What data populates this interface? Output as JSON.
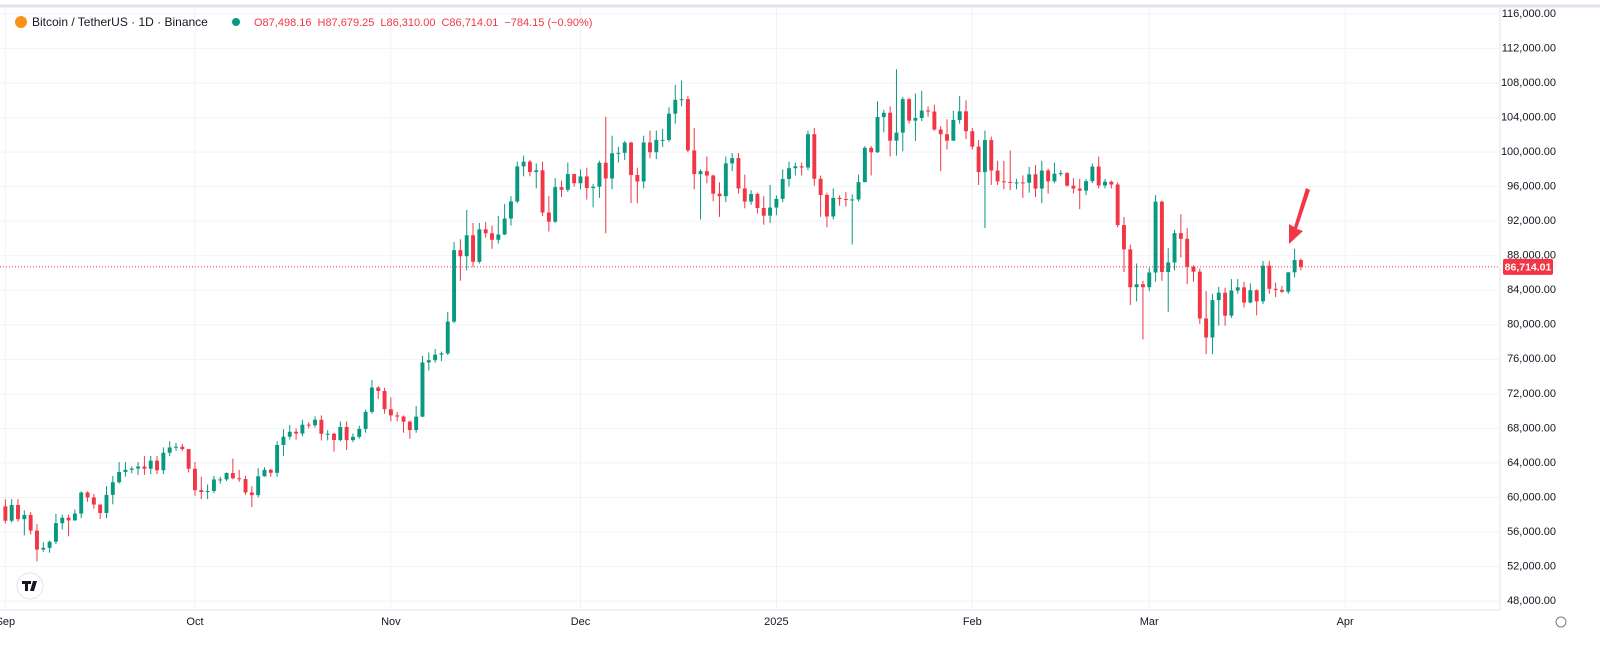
{
  "chart_data": {
    "type": "candlestick",
    "title": "Bitcoin / TetherUS · 1D · Binance",
    "header_values": [
      "O87,498.16",
      "H87,679.25",
      "L86,310.00",
      "C86,714.01",
      "−784.15 (−0.90%)"
    ],
    "last_price_label": "86,714.01",
    "up_color": "#089981",
    "down_color": "#f23645",
    "grid": true,
    "xlim": [
      -0.85,
      236.5
    ],
    "xticks": [
      {
        "value": 0,
        "label": "Sep"
      },
      {
        "value": 30,
        "label": "Oct"
      },
      {
        "value": 61,
        "label": "Nov"
      },
      {
        "value": 91,
        "label": "Dec"
      },
      {
        "value": 122,
        "label": "2025"
      },
      {
        "value": 153,
        "label": "Feb"
      },
      {
        "value": 181,
        "label": "Mar"
      },
      {
        "value": 212,
        "label": "Apr"
      }
    ],
    "ylim": [
      46960,
      116700
    ],
    "yticks": [
      {
        "value": 48000,
        "label": "48,000.00"
      },
      {
        "value": 52000,
        "label": "52,000.00"
      },
      {
        "value": 56000,
        "label": "56,000.00"
      },
      {
        "value": 60000,
        "label": "60,000.00"
      },
      {
        "value": 64000,
        "label": "64,000.00"
      },
      {
        "value": 68000,
        "label": "68,000.00"
      },
      {
        "value": 72000,
        "label": "72,000.00"
      },
      {
        "value": 76000,
        "label": "76,000.00"
      },
      {
        "value": 80000,
        "label": "80,000.00"
      },
      {
        "value": 84000,
        "label": "84,000.00"
      },
      {
        "value": 88000,
        "label": "88,000.00"
      },
      {
        "value": 92000,
        "label": "92,000.00"
      },
      {
        "value": 96000,
        "label": "96,000.00"
      },
      {
        "value": 100000,
        "label": "100,000.00"
      },
      {
        "value": 104000,
        "label": "104,000.00"
      },
      {
        "value": 108000,
        "label": "108,000.00"
      },
      {
        "value": 112000,
        "label": "112,000.00"
      },
      {
        "value": 116000,
        "label": "116,000.00"
      }
    ],
    "x": [
      0,
      1,
      2,
      3,
      4,
      5,
      6,
      7,
      8,
      9,
      10,
      11,
      12,
      13,
      14,
      15,
      16,
      17,
      18,
      19,
      20,
      21,
      22,
      23,
      24,
      25,
      26,
      27,
      28,
      29,
      30,
      31,
      32,
      33,
      34,
      35,
      36,
      37,
      38,
      39,
      40,
      41,
      42,
      43,
      44,
      45,
      46,
      47,
      48,
      49,
      50,
      51,
      52,
      53,
      54,
      55,
      56,
      57,
      58,
      59,
      60,
      61,
      62,
      63,
      64,
      65,
      66,
      67,
      68,
      69,
      70,
      71,
      72,
      73,
      74,
      75,
      76,
      77,
      78,
      79,
      80,
      81,
      82,
      83,
      84,
      85,
      86,
      87,
      88,
      89,
      90,
      91,
      92,
      93,
      94,
      95,
      96,
      97,
      98,
      99,
      100,
      101,
      102,
      103,
      104,
      105,
      106,
      107,
      108,
      109,
      110,
      111,
      112,
      113,
      114,
      115,
      116,
      117,
      118,
      119,
      120,
      121,
      122,
      123,
      124,
      125,
      126,
      127,
      128,
      129,
      130,
      131,
      132,
      133,
      134,
      135,
      136,
      137,
      138,
      139,
      140,
      141,
      142,
      143,
      144,
      145,
      146,
      147,
      148,
      149,
      150,
      151,
      152,
      153,
      154,
      155,
      156,
      157,
      158,
      159,
      160,
      161,
      162,
      163,
      164,
      165,
      166,
      167,
      168,
      169,
      170,
      171,
      172,
      173,
      174,
      175,
      176,
      177,
      178,
      179,
      180,
      181,
      182,
      183,
      184,
      185,
      186,
      187,
      188,
      189,
      190,
      191,
      192,
      193,
      194,
      195,
      196,
      197,
      198,
      199,
      200,
      201,
      202,
      203,
      204,
      205
    ],
    "open": [
      58970,
      57300,
      59130,
      57480,
      57970,
      56160,
      53960,
      54160,
      54870,
      57020,
      57650,
      57340,
      58130,
      60570,
      60000,
      59180,
      58200,
      60300,
      61760,
      62950,
      63200,
      63350,
      63580,
      63330,
      64260,
      63150,
      65180,
      65790,
      65880,
      65600,
      63330,
      60840,
      60630,
      60750,
      62080,
      62090,
      62820,
      62220,
      62130,
      60580,
      60270,
      62450,
      63200,
      62850,
      66080,
      67040,
      67610,
      67400,
      68430,
      68360,
      69000,
      67370,
      67380,
      66650,
      68160,
      66640,
      67020,
      67940,
      69910,
      72730,
      72340,
      70220,
      69500,
      69370,
      68780,
      67810,
      69360,
      75640,
      75900,
      76540,
      76680,
      80370,
      88650,
      87950,
      90370,
      87300,
      91060,
      90600,
      89850,
      90460,
      92310,
      94290,
      98350,
      98900,
      97700,
      97900,
      93010,
      91950,
      95950,
      95640,
      97460,
      96400,
      97190,
      95840,
      96000,
      98770,
      96950,
      99870,
      99920,
      101110,
      97350,
      96600,
      101120,
      100000,
      101420,
      101420,
      104460,
      106060,
      106140,
      100200,
      97460,
      97800,
      97290,
      95190,
      94900,
      98700,
      99310,
      95800,
      94270,
      95160,
      93530,
      92640,
      93580,
      94590,
      96890,
      98140,
      98360,
      98220,
      102080,
      96920,
      95040,
      92550,
      94700,
      94570,
      94520,
      94520,
      96530,
      100500,
      99990,
      104080,
      104560,
      101330,
      102260,
      106140,
      103650,
      103960,
      104820,
      104710,
      102620,
      102080,
      101330,
      103730,
      104730,
      102430,
      100640,
      97690,
      101400,
      97870,
      96620,
      96550,
      96480,
      96500,
      96460,
      97430,
      95780,
      97870,
      96620,
      97510,
      97570,
      96120,
      95780,
      95540,
      96640,
      98330,
      96140,
      96580,
      96250,
      91550,
      88740,
      84350,
      84700,
      84350,
      86060,
      94270,
      86120,
      87220,
      90620,
      89960,
      86740,
      86150,
      80730,
      78530,
      82860,
      83720,
      81060,
      83970,
      84340,
      82580,
      84010,
      82720,
      86850,
      84170,
      84040,
      83830,
      86080,
      87498.16
    ],
    "high": [
      59800,
      59800,
      59800,
      58500,
      58300,
      56900,
      54800,
      55000,
      58100,
      58000,
      58000,
      58600,
      60700,
      60700,
      60400,
      59200,
      61300,
      62500,
      64100,
      64100,
      63600,
      64100,
      64800,
      64800,
      64800,
      65800,
      66500,
      66300,
      66200,
      65600,
      64100,
      62400,
      61500,
      62500,
      62400,
      62900,
      64500,
      63200,
      62500,
      61300,
      63400,
      63500,
      63300,
      66500,
      67900,
      68400,
      68000,
      69000,
      68700,
      69400,
      69500,
      67800,
      67500,
      68800,
      68800,
      67400,
      68300,
      70200,
      73600,
      72900,
      72700,
      71600,
      69900,
      69500,
      68900,
      70600,
      76400,
      76800,
      77200,
      76900,
      81500,
      89600,
      89900,
      93300,
      91800,
      91800,
      91900,
      91500,
      92600,
      94000,
      94900,
      98900,
      99600,
      99100,
      98700,
      98900,
      94900,
      97000,
      96700,
      98800,
      97500,
      98000,
      98200,
      96300,
      99000,
      104100,
      101900,
      100600,
      101300,
      101200,
      98200,
      101900,
      102500,
      102500,
      102700,
      105200,
      107800,
      108300,
      106500,
      102800,
      98000,
      99500,
      97400,
      96500,
      99500,
      99900,
      99900,
      97400,
      95600,
      95300,
      94900,
      96200,
      95000,
      98000,
      98900,
      98800,
      98800,
      102500,
      102800,
      97300,
      95300,
      95800,
      95000,
      95400,
      95100,
      97400,
      100700,
      100700,
      105900,
      104900,
      105300,
      109600,
      106400,
      106300,
      106800,
      107100,
      105300,
      105500,
      103000,
      103800,
      104800,
      106500,
      106000,
      102800,
      101400,
      102500,
      101800,
      99000,
      99000,
      100200,
      96900,
      97300,
      98300,
      98500,
      99000,
      98100,
      98800,
      97900,
      97700,
      97000,
      96900,
      96900,
      98700,
      99500,
      96900,
      96700,
      96500,
      92500,
      89300,
      87100,
      85100,
      86600,
      95000,
      94400,
      88900,
      91000,
      92800,
      91200,
      86900,
      86500,
      83900,
      83600,
      84400,
      84300,
      85300,
      85300,
      85000,
      84800,
      84100,
      87400,
      87400,
      84900,
      84500,
      86100,
      88800,
      87679.25
    ],
    "low": [
      57000,
      57100,
      57200,
      55600,
      55700,
      52600,
      53700,
      53600,
      54600,
      56300,
      55500,
      57300,
      57600,
      59500,
      58700,
      57500,
      57600,
      59200,
      61600,
      62400,
      62800,
      62600,
      62600,
      62700,
      62700,
      62700,
      64800,
      65400,
      65400,
      62900,
      60200,
      59800,
      59800,
      60500,
      61600,
      61900,
      62100,
      61800,
      60300,
      58900,
      60000,
      62400,
      62400,
      62400,
      64800,
      66700,
      66700,
      67100,
      68000,
      68100,
      66600,
      66600,
      65300,
      66500,
      65500,
      66400,
      66800,
      67500,
      69700,
      71400,
      69700,
      68800,
      68800,
      67500,
      66800,
      67500,
      69300,
      74700,
      75600,
      75800,
      76500,
      80200,
      85100,
      86300,
      86700,
      87100,
      90100,
      88800,
      89400,
      90400,
      91500,
      94100,
      97200,
      97200,
      95800,
      92600,
      90800,
      91800,
      94800,
      95400,
      96000,
      95700,
      94500,
      93600,
      94700,
      90600,
      95700,
      98800,
      99100,
      94100,
      94100,
      95800,
      99300,
      99200,
      100600,
      101200,
      103300,
      105300,
      100000,
      95700,
      92200,
      96400,
      94300,
      92500,
      94200,
      97800,
      95200,
      93500,
      93900,
      92900,
      91600,
      91800,
      92700,
      94200,
      96000,
      97300,
      97300,
      97900,
      96100,
      92500,
      91300,
      92200,
      93800,
      93700,
      89300,
      94300,
      96500,
      97300,
      99900,
      102300,
      99500,
      99600,
      100100,
      103300,
      101300,
      103600,
      104100,
      102500,
      97800,
      100300,
      101300,
      103300,
      101500,
      100300,
      96200,
      91200,
      96200,
      96200,
      95700,
      95600,
      95700,
      94700,
      95300,
      94800,
      94100,
      95200,
      96400,
      97200,
      96000,
      95200,
      93400,
      95000,
      96400,
      95800,
      95800,
      95800,
      91300,
      86100,
      82300,
      82700,
      78300,
      83900,
      85000,
      85100,
      81500,
      86300,
      87800,
      84700,
      85000,
      80100,
      76600,
      76600,
      79900,
      79900,
      80800,
      83600,
      82000,
      82500,
      81100,
      82400,
      83600,
      83200,
      83700,
      83600,
      85500,
      86310
    ],
    "close": [
      57300,
      59130,
      57480,
      57970,
      56160,
      53960,
      54160,
      54870,
      57020,
      57650,
      57340,
      58130,
      60570,
      60000,
      59180,
      58200,
      60300,
      61760,
      62950,
      63200,
      63350,
      63580,
      63330,
      64260,
      63150,
      65180,
      65790,
      65880,
      65600,
      63330,
      60840,
      60630,
      60750,
      62080,
      62090,
      62820,
      62220,
      62130,
      60580,
      60270,
      62450,
      63200,
      62850,
      66080,
      67040,
      67610,
      67400,
      68430,
      68360,
      69000,
      67370,
      67380,
      66650,
      68160,
      66640,
      67020,
      67940,
      69910,
      72730,
      72340,
      70220,
      69500,
      69370,
      68780,
      67810,
      69360,
      75640,
      75900,
      76540,
      76680,
      80370,
      88650,
      87950,
      90370,
      87300,
      91060,
      90600,
      89850,
      90460,
      92310,
      94290,
      98350,
      98900,
      97700,
      97900,
      93010,
      91950,
      95950,
      95640,
      97460,
      96400,
      97190,
      95840,
      96000,
      98770,
      96950,
      99870,
      99920,
      101110,
      97350,
      96600,
      101120,
      100000,
      101420,
      101420,
      104460,
      106060,
      106140,
      100200,
      97460,
      97800,
      97290,
      95190,
      94900,
      98700,
      99310,
      95800,
      94270,
      95160,
      93530,
      92640,
      93580,
      94590,
      96890,
      98140,
      98360,
      98220,
      102080,
      96920,
      95040,
      92550,
      94700,
      94570,
      94520,
      94520,
      96530,
      100500,
      99990,
      104080,
      104560,
      101330,
      102260,
      106140,
      103650,
      103960,
      104820,
      104710,
      102620,
      102080,
      101330,
      103730,
      104730,
      102430,
      100640,
      97690,
      101400,
      97870,
      96620,
      96550,
      96480,
      96500,
      96460,
      97430,
      95780,
      97870,
      96620,
      97510,
      97570,
      96120,
      95780,
      95540,
      96640,
      98330,
      96140,
      96580,
      96250,
      91550,
      88740,
      84350,
      84700,
      84350,
      86060,
      94270,
      86120,
      87220,
      90620,
      89960,
      86740,
      86150,
      80730,
      78530,
      82860,
      83720,
      81060,
      83970,
      84340,
      82580,
      84010,
      82720,
      86850,
      84170,
      84040,
      83830,
      86080,
      87498.16,
      86714.01
    ]
  }
}
